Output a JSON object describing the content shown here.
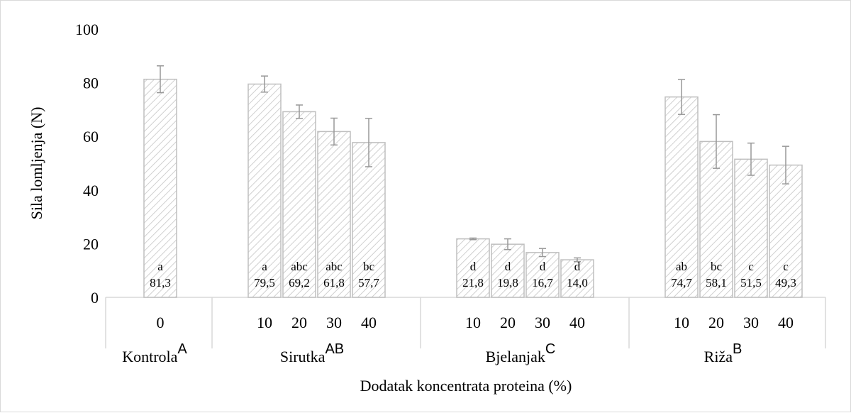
{
  "chart_data": {
    "type": "bar",
    "ylabel": "Sila lomljenja  (N)",
    "xlabel": "Dodatak koncentrata proteina (%)",
    "ylim": [
      0,
      100
    ],
    "yticks": [
      "0",
      "20",
      "40",
      "60",
      "80",
      "100"
    ],
    "grid": false,
    "colors": {
      "bar_border": "#bfbfbf",
      "hatch": "#d0d0d0",
      "error_bar": "#999999",
      "axis": "#d9d9d9"
    },
    "groups": [
      {
        "name": "Kontrola",
        "sup": "A",
        "bars": [
          {
            "category": "0",
            "value": 81.3,
            "err": 5.0,
            "letter": "a",
            "label": "81,3"
          }
        ]
      },
      {
        "name": "Sirutka",
        "sup": "AB",
        "bars": [
          {
            "category": "10",
            "value": 79.5,
            "err": 3.0,
            "letter": "a",
            "label": "79,5"
          },
          {
            "category": "20",
            "value": 69.2,
            "err": 2.5,
            "letter": "abc",
            "label": "69,2"
          },
          {
            "category": "30",
            "value": 61.8,
            "err": 5.0,
            "letter": "abc",
            "label": "61,8"
          },
          {
            "category": "40",
            "value": 57.7,
            "err": 9.0,
            "letter": "bc",
            "label": "57,7"
          }
        ]
      },
      {
        "name": "Bjelanjak",
        "sup": "C",
        "bars": [
          {
            "category": "10",
            "value": 21.8,
            "err": 0.3,
            "letter": "d",
            "label": "21,8"
          },
          {
            "category": "20",
            "value": 19.8,
            "err": 2.0,
            "letter": "d",
            "label": "19,8"
          },
          {
            "category": "30",
            "value": 16.7,
            "err": 1.5,
            "letter": "d",
            "label": "16,7"
          },
          {
            "category": "40",
            "value": 14.0,
            "err": 0.7,
            "letter": "d",
            "label": "14,0"
          }
        ]
      },
      {
        "name": "Riža",
        "sup": "B",
        "bars": [
          {
            "category": "10",
            "value": 74.7,
            "err": 6.5,
            "letter": "ab",
            "label": "74,7"
          },
          {
            "category": "20",
            "value": 58.1,
            "err": 10.0,
            "letter": "bc",
            "label": "58,1"
          },
          {
            "category": "30",
            "value": 51.5,
            "err": 6.0,
            "letter": "c",
            "label": "51,5"
          },
          {
            "category": "40",
            "value": 49.3,
            "err": 7.0,
            "letter": "c",
            "label": "49,3"
          }
        ]
      }
    ]
  }
}
